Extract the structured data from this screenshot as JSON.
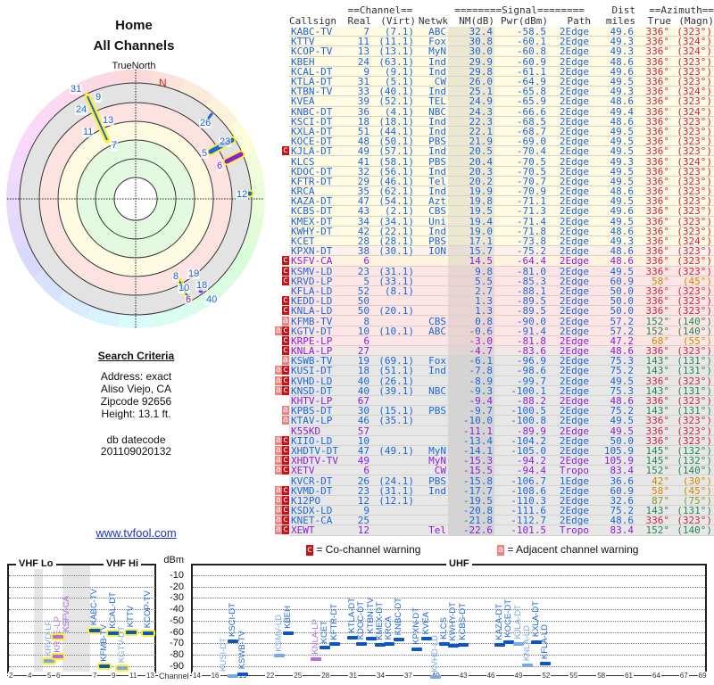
{
  "left": {
    "title": "Home",
    "subtitle": "All Channels",
    "true_north": "TrueNorth",
    "north": "N",
    "polar_labels": [
      {
        "t": "31",
        "an": false
      },
      {
        "t": "9",
        "an": false
      },
      {
        "t": "24",
        "an": false
      },
      {
        "t": "13",
        "an": false
      },
      {
        "t": "11",
        "an": false
      },
      {
        "t": "7",
        "an": false
      },
      {
        "t": "26",
        "an": false
      },
      {
        "t": "23",
        "an": false
      },
      {
        "t": "5",
        "an": false
      },
      {
        "t": "6",
        "an": true
      },
      {
        "t": "12",
        "an": false
      },
      {
        "t": "8",
        "an": false
      },
      {
        "t": "19",
        "an": false
      },
      {
        "t": "10",
        "an": false
      },
      {
        "t": "18",
        "an": false
      },
      {
        "t": "6",
        "an": true
      },
      {
        "t": "40",
        "an": false
      }
    ],
    "criteria_title": "Search Criteria",
    "address": "Address: exact",
    "city": "Aliso Viejo, CA",
    "zip": "Zipcode 92656",
    "height": "Height: 13.1 ft.",
    "db_label": "db datecode",
    "db_value": "201109020132",
    "site": "www.tvfool.com"
  },
  "table": {
    "group_channel": "==Channel==",
    "group_signal": "========Signal========",
    "group_dist": "Dist",
    "group_azimuth": "==Azimuth==",
    "headers": [
      "Callsign",
      "Real",
      "(Virt)",
      "Netwk",
      "NM(dB)",
      "Pwr(dBm)",
      "Path",
      "miles",
      "True",
      "(Magn)"
    ],
    "rows": [
      [
        "",
        "KABC-TV",
        "7",
        "(7.1)",
        "ABC",
        "32.4",
        "-58.5",
        "2Edge",
        "49.6",
        "336°",
        "(323°)",
        "d",
        "y"
      ],
      [
        "",
        "KTTV",
        "11",
        "(11.1)",
        "Fox",
        "30.8",
        "-60.1",
        "2Edge",
        "49.3",
        "336°",
        "(324°)",
        "d",
        "y"
      ],
      [
        "",
        "KCOP-TV",
        "13",
        "(13.1)",
        "MyN",
        "30.0",
        "-60.8",
        "2Edge",
        "49.3",
        "336°",
        "(324°)",
        "d",
        "y"
      ],
      [
        "",
        "KBEH",
        "24",
        "(63.1)",
        "Ind",
        "29.9",
        "-60.9",
        "2Edge",
        "48.6",
        "336°",
        "(323°)",
        "d",
        "y"
      ],
      [
        "",
        "KCAL-DT",
        "9",
        "(9.1)",
        "Ind",
        "29.8",
        "-61.1",
        "2Edge",
        "49.6",
        "336°",
        "(323°)",
        "d",
        "y"
      ],
      [
        "",
        "KTLA-DT",
        "31",
        "(5.1)",
        "CW",
        "26.0",
        "-64.9",
        "2Edge",
        "49.5",
        "336°",
        "(323°)",
        "d",
        "y"
      ],
      [
        "",
        "KTBN-TV",
        "33",
        "(40.1)",
        "Ind",
        "25.1",
        "-65.8",
        "2Edge",
        "49.3",
        "336°",
        "(324°)",
        "d",
        "y"
      ],
      [
        "",
        "KVEA",
        "39",
        "(52.1)",
        "TEL",
        "24.9",
        "-65.9",
        "2Edge",
        "48.6",
        "336°",
        "(323°)",
        "d",
        "y"
      ],
      [
        "",
        "KNBC-DT",
        "36",
        "(4.1)",
        "NBC",
        "24.3",
        "-66.6",
        "2Edge",
        "49.4",
        "336°",
        "(324°)",
        "d",
        "y"
      ],
      [
        "",
        "KSCI-DT",
        "18",
        "(18.1)",
        "Ind",
        "22.3",
        "-68.5",
        "2Edge",
        "48.6",
        "336°",
        "(323°)",
        "d",
        "y"
      ],
      [
        "",
        "KXLA-DT",
        "51",
        "(44.1)",
        "Ind",
        "22.1",
        "-68.7",
        "2Edge",
        "49.5",
        "336°",
        "(323°)",
        "d",
        "y"
      ],
      [
        "",
        "KOCE-DT",
        "48",
        "(50.1)",
        "PBS",
        "21.9",
        "-69.0",
        "2Edge",
        "49.5",
        "336°",
        "(323°)",
        "d",
        "y"
      ],
      [
        "c",
        "KJLA-DT",
        "49",
        "(57.1)",
        "Ind",
        "20.5",
        "-70.4",
        "2Edge",
        "49.5",
        "336°",
        "(323°)",
        "d",
        "y"
      ],
      [
        "",
        "KLCS",
        "41",
        "(58.1)",
        "PBS",
        "20.4",
        "-70.5",
        "2Edge",
        "49.3",
        "336°",
        "(324°)",
        "d",
        "y"
      ],
      [
        "",
        "KDOC-DT",
        "32",
        "(56.1)",
        "Ind",
        "20.3",
        "-70.5",
        "2Edge",
        "49.5",
        "336°",
        "(323°)",
        "d",
        "y"
      ],
      [
        "",
        "KFTR-DT",
        "29",
        "(46.1)",
        "Tel",
        "20.2",
        "-70.7",
        "2Edge",
        "49.5",
        "336°",
        "(323°)",
        "d",
        "y"
      ],
      [
        "",
        "KRCA",
        "35",
        "(62.1)",
        "Ind",
        "19.9",
        "-70.9",
        "2Edge",
        "48.6",
        "336°",
        "(323°)",
        "d",
        "y"
      ],
      [
        "",
        "KAZA-DT",
        "47",
        "(54.1)",
        "Azt",
        "19.8",
        "-71.1",
        "2Edge",
        "49.5",
        "336°",
        "(323°)",
        "d",
        "y"
      ],
      [
        "",
        "KCBS-DT",
        "43",
        "(2.1)",
        "CBS",
        "19.5",
        "-71.3",
        "2Edge",
        "49.6",
        "336°",
        "(323°)",
        "d",
        "y"
      ],
      [
        "",
        "KMEX-DT",
        "34",
        "(34.1)",
        "Uni",
        "19.4",
        "-71.4",
        "2Edge",
        "49.5",
        "336°",
        "(323°)",
        "d",
        "y"
      ],
      [
        "",
        "KWHY-DT",
        "42",
        "(22.1)",
        "Ind",
        "19.0",
        "-71.8",
        "2Edge",
        "48.6",
        "336°",
        "(323°)",
        "d",
        "y"
      ],
      [
        "",
        "KCET",
        "28",
        "(28.1)",
        "PBS",
        "17.1",
        "-73.8",
        "2Edge",
        "49.3",
        "336°",
        "(324°)",
        "d",
        "y"
      ],
      [
        "",
        "KPXN-DT",
        "38",
        "(30.1)",
        "ION",
        "15.7",
        "-75.2",
        "2Edge",
        "48.6",
        "336°",
        "(323°)",
        "d",
        "s"
      ],
      [
        "c",
        "KSFV-CA",
        "6",
        "",
        "",
        "14.5",
        "-64.4",
        "2Edge",
        "48.6",
        "336°",
        "(323°)",
        "a",
        "o"
      ],
      [
        "c",
        "KSMV-LD",
        "23",
        "(31.1)",
        "",
        "9.8",
        "-81.0",
        "2Edge",
        "49.5",
        "336°",
        "(323°)",
        "d",
        "p"
      ],
      [
        "c",
        "KRVD-LP",
        "5",
        "(33.1)",
        "",
        "5.5",
        "-85.3",
        "2Edge",
        "60.9",
        "58°",
        "(45°)",
        "d",
        "p"
      ],
      [
        "",
        "KFLA-LD",
        "52",
        "(8.1)",
        "",
        "2.7",
        "-88.1",
        "2Edge",
        "50.0",
        "336°",
        "(323°)",
        "d",
        "p"
      ],
      [
        "c",
        "KEDD-LD",
        "50",
        "",
        "",
        "1.3",
        "-89.5",
        "2Edge",
        "50.0",
        "336°",
        "(323°)",
        "d",
        "p"
      ],
      [
        "c",
        "KNLA-LD",
        "50",
        "(20.1)",
        "",
        "1.3",
        "-89.5",
        "2Edge",
        "50.0",
        "336°",
        "(323°)",
        "d",
        "p"
      ],
      [
        "a",
        "KFMB-TV",
        "8",
        "",
        "CBS",
        "0.8",
        "-90.0",
        "2Edge",
        "57.2",
        "152°",
        "(140°)",
        "d",
        "p"
      ],
      [
        "ac",
        "KGTV-DT",
        "10",
        "(10.1)",
        "ABC",
        "-0.6",
        "-91.4",
        "2Edge",
        "57.2",
        "152°",
        "(140°)",
        "d",
        "p"
      ],
      [
        "c",
        "KRPE-LP",
        "6",
        "",
        "",
        "-3.0",
        "-81.8",
        "2Edge",
        "47.2",
        "68°",
        "(55°)",
        "a",
        "p"
      ],
      [
        "c",
        "KNLA-LP",
        "27",
        "",
        "",
        "-4.7",
        "-83.6",
        "2Edge",
        "48.6",
        "336°",
        "(323°)",
        "a",
        "q"
      ],
      [
        "a",
        "KSWB-TV",
        "19",
        "(69.1)",
        "Fox",
        "-6.1",
        "-96.9",
        "2Edge",
        "75.3",
        "143°",
        "(131°)",
        "d",
        "g"
      ],
      [
        "ac",
        "KUSI-DT",
        "18",
        "(51.1)",
        "Ind",
        "-7.8",
        "-98.6",
        "2Edge",
        "75.2",
        "143°",
        "(131°)",
        "d",
        "g"
      ],
      [
        "ac",
        "KVHD-LD",
        "40",
        "(26.1)",
        "",
        "-8.9",
        "-99.7",
        "2Edge",
        "49.5",
        "336°",
        "(323°)",
        "d",
        "g"
      ],
      [
        "ac",
        "KNSD-DT",
        "40",
        "(39.1)",
        "NBC",
        "-9.3",
        "-100.1",
        "2Edge",
        "75.3",
        "143°",
        "(131°)",
        "d",
        "g"
      ],
      [
        "",
        "KHTV-LP",
        "67",
        "",
        "",
        "-9.4",
        "-88.2",
        "2Edge",
        "48.6",
        "336°",
        "(323°)",
        "a",
        "g"
      ],
      [
        "a",
        "KPBS-DT",
        "30",
        "(15.1)",
        "PBS",
        "-9.7",
        "-100.5",
        "2Edge",
        "75.2",
        "143°",
        "(131°)",
        "d",
        "g"
      ],
      [
        "a",
        "KTAV-LP",
        "46",
        "(35.1)",
        "",
        "-10.0",
        "-100.8",
        "2Edge",
        "49.5",
        "336°",
        "(323°)",
        "d",
        "g"
      ],
      [
        "",
        "K55KD",
        "57",
        "",
        "",
        "-11.1",
        "-89.9",
        "2Edge",
        "49.5",
        "336°",
        "(323°)",
        "a",
        "g"
      ],
      [
        "ac",
        "KIIO-LD",
        "10",
        "",
        "",
        "-13.4",
        "-104.2",
        "2Edge",
        "50.0",
        "336°",
        "(323°)",
        "d",
        "g"
      ],
      [
        "ac",
        "XHDTV-DT",
        "47",
        "(49.1)",
        "MyN",
        "-14.1",
        "-105.0",
        "2Edge",
        "105.9",
        "145°",
        "(132°)",
        "d",
        "g"
      ],
      [
        "ac",
        "XHDTV-TV",
        "49",
        "",
        "MyN",
        "-15.3",
        "-94.2",
        "2Edge",
        "105.9",
        "145°",
        "(132°)",
        "a",
        "g"
      ],
      [
        "ac",
        "XETV",
        "6",
        "",
        "CW",
        "-15.5",
        "-94.4",
        "Tropo",
        "83.4",
        "152°",
        "(140°)",
        "a",
        "g"
      ],
      [
        "",
        "KVCR-DT",
        "26",
        "(24.1)",
        "PBS",
        "-15.8",
        "-106.7",
        "1Edge",
        "36.6",
        "42°",
        "(30°)",
        "d",
        "g"
      ],
      [
        "ac",
        "KVMD-DT",
        "23",
        "(31.1)",
        "Ind",
        "-17.7",
        "-108.6",
        "2Edge",
        "60.9",
        "58°",
        "(45°)",
        "d",
        "g"
      ],
      [
        "ac",
        "K12PO",
        "12",
        "(12.1)",
        "",
        "-19.5",
        "-110.3",
        "2Edge",
        "32.6",
        "87°",
        "(75°)",
        "d",
        "g"
      ],
      [
        "ac",
        "KSDX-LD",
        "9",
        "",
        "",
        "-20.8",
        "-111.6",
        "2Edge",
        "75.2",
        "143°",
        "(131°)",
        "d",
        "g"
      ],
      [
        "ac",
        "KNET-CA",
        "25",
        "",
        "",
        "-21.8",
        "-112.7",
        "2Edge",
        "48.6",
        "336°",
        "(323°)",
        "d",
        "g"
      ],
      [
        "ac",
        "XEWT",
        "12",
        "",
        "Tel",
        "-22.6",
        "-101.5",
        "Tropo",
        "83.4",
        "152°",
        "(140°)",
        "a",
        "g"
      ]
    ]
  },
  "legend": {
    "co_flag": "c",
    "co_text": "= Co-channel warning",
    "adj_flag": "a",
    "adj_text": "= Adjacent channel warning"
  },
  "chart_data": {
    "type": "scatter",
    "title_vhf_lo": "VHF Lo",
    "title_vhf_hi": "VHF Hi",
    "title_uhf": "UHF",
    "ylabel": "dBm",
    "xlabel": "Channel",
    "yticks": [
      "-10",
      "-20",
      "-30",
      "-40",
      "-50",
      "-60",
      "-70",
      "-80",
      "-90"
    ],
    "ylim": [
      0,
      -95
    ],
    "vhf_ticks": [
      "2",
      "4",
      "5",
      "6",
      "7",
      "9",
      "11",
      "13"
    ],
    "uhf_ticks": [
      "14",
      "16",
      "19",
      "22",
      "25",
      "28",
      "31",
      "34",
      "37",
      "40",
      "43",
      "46",
      "49",
      "52",
      "55",
      "58",
      "61",
      "64",
      "67",
      "69"
    ],
    "points": [
      {
        "call": "KRVD-LP",
        "ch": 5,
        "dbm": -85.3,
        "c": "l",
        "hl": true
      },
      {
        "call": "KRPE-LP",
        "ch": 6,
        "dbm": -81.8,
        "c": "a",
        "hl": true
      },
      {
        "call": "KSFV-CA",
        "ch": 6,
        "dbm": -64.4,
        "c": "a",
        "hl": true
      },
      {
        "call": "KABC-TV",
        "ch": 7,
        "dbm": -58.5,
        "c": "d",
        "hl": true
      },
      {
        "call": "KFMB-TV",
        "ch": 8,
        "dbm": -90.0,
        "c": "d",
        "hl": true
      },
      {
        "call": "KCAL-DT",
        "ch": 9,
        "dbm": -61.1,
        "c": "d",
        "hl": true
      },
      {
        "call": "KGTV-DT",
        "ch": 10,
        "dbm": -91.4,
        "c": "l",
        "hl": true
      },
      {
        "call": "KTTV",
        "ch": 11,
        "dbm": -60.1,
        "c": "d",
        "hl": true
      },
      {
        "call": "KCOP-TV",
        "ch": 13,
        "dbm": -60.8,
        "c": "d",
        "hl": true
      },
      {
        "call": "KUSI-DT",
        "ch": 18,
        "dbm": -98.6,
        "c": "l"
      },
      {
        "call": "KSCI-DT",
        "ch": 18,
        "dbm": -68.5,
        "c": "d"
      },
      {
        "call": "KSWB-TV",
        "ch": 19,
        "dbm": -96.9,
        "c": "d"
      },
      {
        "call": "KSMV-LD",
        "ch": 23,
        "dbm": -81.0,
        "c": "l"
      },
      {
        "call": "KBEH",
        "ch": 24,
        "dbm": -60.9,
        "c": "d"
      },
      {
        "call": "KNLA-LP",
        "ch": 27,
        "dbm": -83.6,
        "c": "a"
      },
      {
        "call": "KCET",
        "ch": 28,
        "dbm": -73.8,
        "c": "d"
      },
      {
        "call": "KFTR-DT",
        "ch": 29,
        "dbm": -70.7,
        "c": "d"
      },
      {
        "call": "KTLA-DT",
        "ch": 31,
        "dbm": -64.9,
        "c": "d"
      },
      {
        "call": "KDOC-DT",
        "ch": 32,
        "dbm": -70.5,
        "c": "d"
      },
      {
        "call": "KTBN-TV",
        "ch": 33,
        "dbm": -65.8,
        "c": "d"
      },
      {
        "call": "KMEX-DT",
        "ch": 34,
        "dbm": -71.4,
        "c": "d"
      },
      {
        "call": "KRCA",
        "ch": 35,
        "dbm": -70.9,
        "c": "d"
      },
      {
        "call": "KNBC-DT",
        "ch": 36,
        "dbm": -66.6,
        "c": "d"
      },
      {
        "call": "KPXN-DT",
        "ch": 38,
        "dbm": -75.2,
        "c": "d"
      },
      {
        "call": "KVEA",
        "ch": 39,
        "dbm": -65.9,
        "c": "d"
      },
      {
        "call": "KVHD-LD",
        "ch": 40,
        "dbm": -99.7,
        "c": "l"
      },
      {
        "call": "KLCS",
        "ch": 41,
        "dbm": -70.5,
        "c": "d"
      },
      {
        "call": "KWHY-DT",
        "ch": 42,
        "dbm": -71.8,
        "c": "d"
      },
      {
        "call": "KCBS-DT",
        "ch": 43,
        "dbm": -71.3,
        "c": "d"
      },
      {
        "call": "KAZA-DT",
        "ch": 47,
        "dbm": -71.1,
        "c": "d"
      },
      {
        "call": "KOCE-DT",
        "ch": 48,
        "dbm": -69.0,
        "c": "d"
      },
      {
        "call": "KJLA-DT",
        "ch": 49,
        "dbm": -70.4,
        "c": "l"
      },
      {
        "call": "KNLA-LD",
        "ch": 50,
        "dbm": -89.5,
        "c": "l"
      },
      {
        "call": "KXLA-DT",
        "ch": 51,
        "dbm": -68.7,
        "c": "d"
      },
      {
        "call": "KFLA-LD",
        "ch": 52,
        "dbm": -88.1,
        "c": "d"
      }
    ]
  }
}
